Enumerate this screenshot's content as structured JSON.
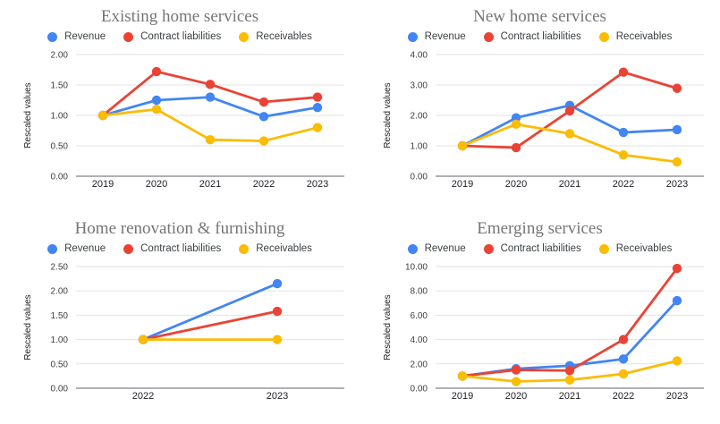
{
  "page": {
    "background": "#ffffff",
    "title_color": "#757575",
    "grid_color": "#e3e3e3",
    "axis_color": "#5f6368"
  },
  "chart_data": [
    {
      "type": "line",
      "title": "Existing home services",
      "ylabel": "Rescaled values",
      "legend_position": "top",
      "grid": true,
      "marker": "circle",
      "x": [
        "2019",
        "2020",
        "2021",
        "2022",
        "2023"
      ],
      "ylim": [
        0,
        2.0
      ],
      "yticks": [
        0,
        0.5,
        1.0,
        1.5,
        2.0
      ],
      "series": [
        {
          "name": "Revenue",
          "color": "#4285F4",
          "values": [
            1.0,
            1.25,
            1.3,
            0.98,
            1.13
          ]
        },
        {
          "name": "Contract liabilities",
          "color": "#EA4335",
          "values": [
            1.0,
            1.72,
            1.51,
            1.22,
            1.3
          ]
        },
        {
          "name": "Receivables",
          "color": "#FBBC04",
          "values": [
            1.0,
            1.1,
            0.6,
            0.58,
            0.8
          ]
        }
      ]
    },
    {
      "type": "line",
      "title": "New home services",
      "ylabel": "Rescaled values",
      "legend_position": "top",
      "grid": true,
      "marker": "circle",
      "x": [
        "2019",
        "2020",
        "2021",
        "2022",
        "2023"
      ],
      "ylim": [
        0,
        4.0
      ],
      "yticks": [
        0,
        1.0,
        2.0,
        3.0,
        4.0
      ],
      "series": [
        {
          "name": "Revenue",
          "color": "#4285F4",
          "values": [
            1.0,
            1.92,
            2.33,
            1.44,
            1.53
          ]
        },
        {
          "name": "Contract liabilities",
          "color": "#EA4335",
          "values": [
            1.0,
            0.94,
            2.15,
            3.42,
            2.89
          ]
        },
        {
          "name": "Receivables",
          "color": "#FBBC04",
          "values": [
            1.0,
            1.71,
            1.4,
            0.7,
            0.47
          ]
        }
      ]
    },
    {
      "type": "line",
      "title": "Home renovation & furnishing",
      "ylabel": "Rescaled values",
      "legend_position": "top",
      "grid": true,
      "marker": "circle",
      "x": [
        "2022",
        "2023"
      ],
      "ylim": [
        0,
        2.5
      ],
      "yticks": [
        0,
        0.5,
        1.0,
        1.5,
        2.0,
        2.5
      ],
      "series": [
        {
          "name": "Revenue",
          "color": "#4285F4",
          "values": [
            1.0,
            2.15
          ]
        },
        {
          "name": "Contract liabilities",
          "color": "#EA4335",
          "values": [
            1.0,
            1.58
          ]
        },
        {
          "name": "Receivables",
          "color": "#FBBC04",
          "values": [
            1.0,
            1.0
          ]
        }
      ]
    },
    {
      "type": "line",
      "title": "Emerging services",
      "ylabel": "Rescaled values",
      "legend_position": "top",
      "grid": true,
      "marker": "circle",
      "x": [
        "2019",
        "2020",
        "2021",
        "2022",
        "2023"
      ],
      "ylim": [
        0,
        10.0
      ],
      "yticks": [
        0,
        2.0,
        4.0,
        6.0,
        8.0,
        10.0
      ],
      "series": [
        {
          "name": "Revenue",
          "color": "#4285F4",
          "values": [
            1.0,
            1.6,
            1.85,
            2.4,
            7.2
          ]
        },
        {
          "name": "Contract liabilities",
          "color": "#EA4335",
          "values": [
            1.0,
            1.5,
            1.45,
            4.0,
            9.85
          ]
        },
        {
          "name": "Receivables",
          "color": "#FBBC04",
          "values": [
            1.0,
            0.55,
            0.68,
            1.18,
            2.25
          ]
        }
      ]
    }
  ]
}
